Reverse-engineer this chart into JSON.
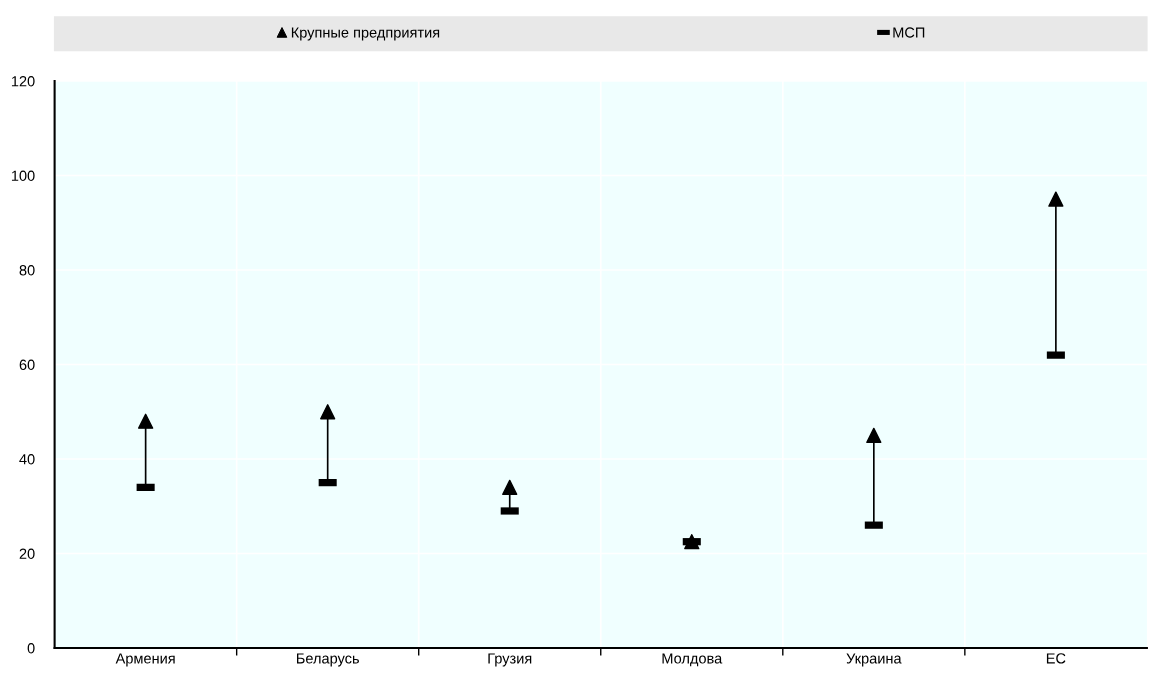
{
  "chart_data": {
    "type": "scatter",
    "categories": [
      "Армения",
      "Беларусь",
      "Грузия",
      "Молдова",
      "Украина",
      "ЕС"
    ],
    "series": [
      {
        "name": "Крупные предприятия",
        "color": "#000000",
        "marker": "triangle",
        "values": [
          48,
          50,
          34,
          22.5,
          45,
          95
        ]
      },
      {
        "name": "МСП",
        "color": "#000000",
        "values": [
          34,
          35,
          29,
          22.5,
          26,
          62
        ]
      }
    ],
    "ylim": [
      0,
      120
    ],
    "yticks": [
      0,
      20,
      40,
      60,
      80,
      100,
      120
    ],
    "grid": true,
    "legend": "top"
  }
}
